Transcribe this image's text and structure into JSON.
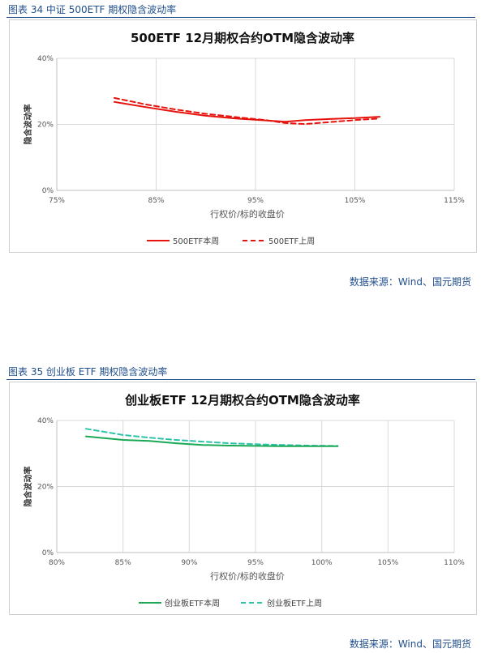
{
  "figures": [
    {
      "caption": "图表 34  中证 500ETF 期权隐含波动率",
      "source": "数据来源：Wind、国元期货"
    },
    {
      "caption": "图表 35  创业板 ETF 期权隐含波动率",
      "source": "数据来源：Wind、国元期货"
    }
  ],
  "chart_data": [
    {
      "type": "line",
      "title": "500ETF 12月期权合约OTM隐含波动率",
      "xlabel": "行权价/标的收盘价",
      "ylabel": "隐含波动率",
      "xlim": [
        75,
        115
      ],
      "ylim": [
        0,
        40
      ],
      "xticks": [
        75,
        85,
        95,
        105,
        115
      ],
      "yticks": [
        0,
        20,
        40
      ],
      "xtick_labels": [
        "75%",
        "85%",
        "95%",
        "105%",
        "115%"
      ],
      "ytick_labels": [
        "0%",
        "20%",
        "40%"
      ],
      "grid": true,
      "legend_position": "bottom",
      "series": [
        {
          "name": "500ETF本周",
          "color": "#e8120c",
          "dash": "solid",
          "x": [
            80.8,
            84,
            87,
            90,
            93,
            96,
            98,
            100,
            103,
            105,
            107.5
          ],
          "y": [
            26.8,
            25.2,
            23.8,
            22.6,
            21.8,
            21.2,
            20.8,
            21.3,
            21.7,
            21.9,
            22.3
          ]
        },
        {
          "name": "500ETF上周",
          "color": "#e8120c",
          "dash": "dashed",
          "x": [
            80.8,
            84,
            87,
            90,
            93,
            96,
            98,
            100,
            103,
            105,
            107.5
          ],
          "y": [
            28.0,
            26.0,
            24.5,
            23.2,
            22.2,
            21.3,
            20.4,
            20.1,
            20.8,
            21.3,
            21.8
          ]
        }
      ]
    },
    {
      "type": "line",
      "title": "创业板ETF 12月期权合约OTM隐含波动率",
      "xlabel": "行权价/标的收盘价",
      "ylabel": "隐含波动率",
      "xlim": [
        80,
        110
      ],
      "ylim": [
        0,
        40
      ],
      "xticks": [
        80,
        85,
        90,
        95,
        100,
        105,
        110
      ],
      "yticks": [
        0,
        20,
        40
      ],
      "xtick_labels": [
        "80%",
        "85%",
        "90%",
        "95%",
        "100%",
        "105%",
        "110%"
      ],
      "ytick_labels": [
        "0%",
        "20%",
        "40%"
      ],
      "grid": true,
      "legend_position": "bottom",
      "series": [
        {
          "name": "创业板ETF本周",
          "color": "#1aa855",
          "dash": "solid",
          "x": [
            82.2,
            85,
            87,
            89,
            91,
            93,
            95,
            97,
            99,
            101.2
          ],
          "y": [
            35.2,
            34.1,
            33.8,
            33.1,
            32.6,
            32.4,
            32.3,
            32.2,
            32.2,
            32.2
          ]
        },
        {
          "name": "创业板ETF上周",
          "color": "#2ec2a8",
          "dash": "dashed",
          "x": [
            82.2,
            85,
            87,
            89,
            91,
            93,
            95,
            97,
            99,
            101.2
          ],
          "y": [
            37.5,
            35.6,
            34.8,
            34.1,
            33.6,
            33.1,
            32.8,
            32.6,
            32.4,
            32.3
          ]
        }
      ]
    }
  ]
}
